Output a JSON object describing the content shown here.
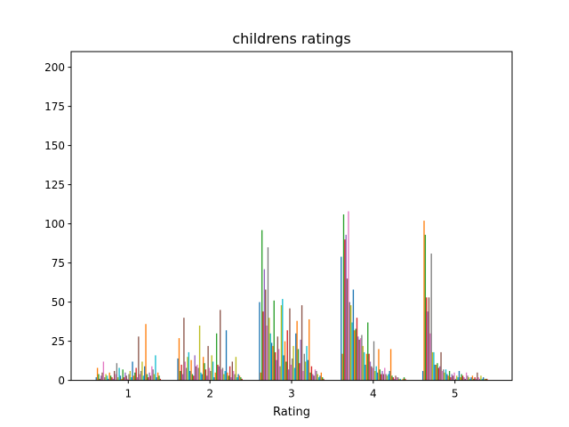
{
  "chart_data": {
    "type": "bar",
    "title": "childrens ratings",
    "xlabel": "Rating",
    "ylabel": "",
    "categories": [
      "1",
      "2",
      "3",
      "4",
      "5"
    ],
    "ylim": [
      0,
      210
    ],
    "yticks": [
      0,
      25,
      50,
      75,
      100,
      125,
      150,
      175,
      200
    ],
    "grid": false,
    "legend": "none",
    "colors": [
      "#1f77b4",
      "#ff7f0e",
      "#2ca02c",
      "#d62728",
      "#9467bd",
      "#8c564b",
      "#e377c2",
      "#7f7f7f",
      "#bcbd22",
      "#17becf"
    ],
    "group_values": [
      [
        2,
        8,
        4,
        1,
        3,
        5,
        12,
        2,
        4,
        3,
        1,
        5,
        3,
        2,
        1,
        6,
        4,
        11,
        2,
        8,
        3,
        1,
        7,
        2,
        5,
        3,
        1,
        4,
        6,
        2,
        12,
        3,
        5,
        8,
        2,
        28,
        4,
        6,
        12,
        3,
        9,
        36,
        4,
        2,
        5,
        3,
        9,
        7,
        4,
        16,
        2,
        5,
        3,
        1
      ],
      [
        14,
        27,
        6,
        10,
        4,
        40,
        12,
        8,
        15,
        18,
        6,
        13,
        4,
        3,
        16,
        9,
        10,
        8,
        35,
        5,
        4,
        15,
        11,
        7,
        3,
        22,
        8,
        6,
        16,
        12,
        2,
        5,
        30,
        10,
        9,
        45,
        7,
        8,
        4,
        6,
        32,
        5,
        3,
        9,
        2,
        12,
        6,
        4,
        15,
        2,
        4,
        3,
        2,
        1
      ],
      [
        50,
        5,
        96,
        44,
        71,
        58,
        35,
        85,
        40,
        30,
        24,
        22,
        51,
        18,
        13,
        28,
        20,
        9,
        48,
        52,
        16,
        25,
        12,
        32,
        7,
        46,
        10,
        14,
        22,
        8,
        30,
        38,
        20,
        11,
        26,
        48,
        6,
        17,
        12,
        22,
        13,
        39,
        5,
        9,
        4,
        3,
        7,
        6,
        4,
        2,
        3,
        5,
        2,
        1
      ],
      [
        79,
        17,
        106,
        90,
        93,
        65,
        108,
        50,
        48,
        37,
        58,
        32,
        33,
        40,
        28,
        26,
        27,
        29,
        22,
        18,
        10,
        17,
        37,
        17,
        12,
        9,
        8,
        25,
        6,
        9,
        5,
        20,
        7,
        4,
        6,
        4,
        8,
        4,
        3,
        4,
        6,
        20,
        3,
        2,
        1,
        3,
        2,
        2,
        1,
        1,
        0,
        1,
        2,
        1
      ],
      [
        6,
        102,
        93,
        53,
        44,
        53,
        30,
        81,
        18,
        18,
        10,
        10,
        11,
        8,
        9,
        18,
        6,
        7,
        5,
        7,
        4,
        3,
        6,
        2,
        4,
        3,
        5,
        1,
        3,
        2,
        6,
        2,
        4,
        3,
        2,
        1,
        5,
        3,
        2,
        1,
        2,
        3,
        1,
        2,
        1,
        5,
        2,
        1,
        3,
        1,
        2,
        1,
        1,
        1
      ]
    ]
  }
}
